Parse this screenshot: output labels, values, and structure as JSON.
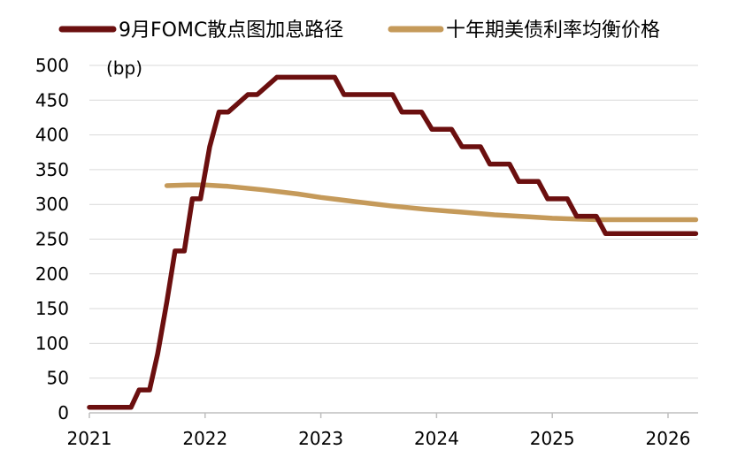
{
  "chart_data": {
    "type": "line",
    "unit_label": "(bp)",
    "xlabel": "",
    "ylabel": "",
    "xlim": [
      2021,
      2026.27
    ],
    "ylim": [
      0,
      500
    ],
    "x_ticks": [
      2021,
      2022,
      2023,
      2024,
      2025,
      2026
    ],
    "y_ticks": [
      0,
      50,
      100,
      150,
      200,
      250,
      300,
      350,
      400,
      450,
      500
    ],
    "grid": "horizontal",
    "legend_position": "top",
    "series": [
      {
        "name": "9月FOMC散点图加息路径",
        "color": "#6b0f0f",
        "x": [
          2021.0,
          2021.36,
          2021.43,
          2021.52,
          2021.59,
          2021.67,
          2021.74,
          2021.82,
          2021.89,
          2021.96,
          2022.04,
          2022.12,
          2022.2,
          2022.37,
          2022.45,
          2022.62,
          2022.7,
          2023.12,
          2023.2,
          2023.62,
          2023.7,
          2023.87,
          2023.96,
          2024.13,
          2024.22,
          2024.38,
          2024.46,
          2024.63,
          2024.71,
          2024.88,
          2024.96,
          2025.13,
          2025.21,
          2025.38,
          2025.46,
          2026.24
        ],
        "values": [
          8,
          8,
          33,
          33,
          85,
          160,
          233,
          233,
          308,
          308,
          383,
          433,
          433,
          458,
          458,
          483,
          483,
          483,
          458,
          458,
          433,
          433,
          408,
          408,
          383,
          383,
          358,
          358,
          333,
          333,
          308,
          308,
          283,
          283,
          258,
          258
        ]
      },
      {
        "name": "十年期美债利率均衡价格",
        "color": "#c59a5a",
        "x": [
          2021.67,
          2021.85,
          2022.0,
          2022.2,
          2022.5,
          2022.8,
          2023.0,
          2023.3,
          2023.6,
          2023.9,
          2024.2,
          2024.5,
          2024.8,
          2025.0,
          2025.2,
          2025.4,
          2025.6,
          2025.8,
          2026.0,
          2026.24
        ],
        "values": [
          327,
          328,
          328,
          326,
          321,
          315,
          310,
          304,
          298,
          293,
          289,
          285,
          282,
          280,
          279,
          278,
          278,
          278,
          278,
          278
        ]
      }
    ]
  }
}
